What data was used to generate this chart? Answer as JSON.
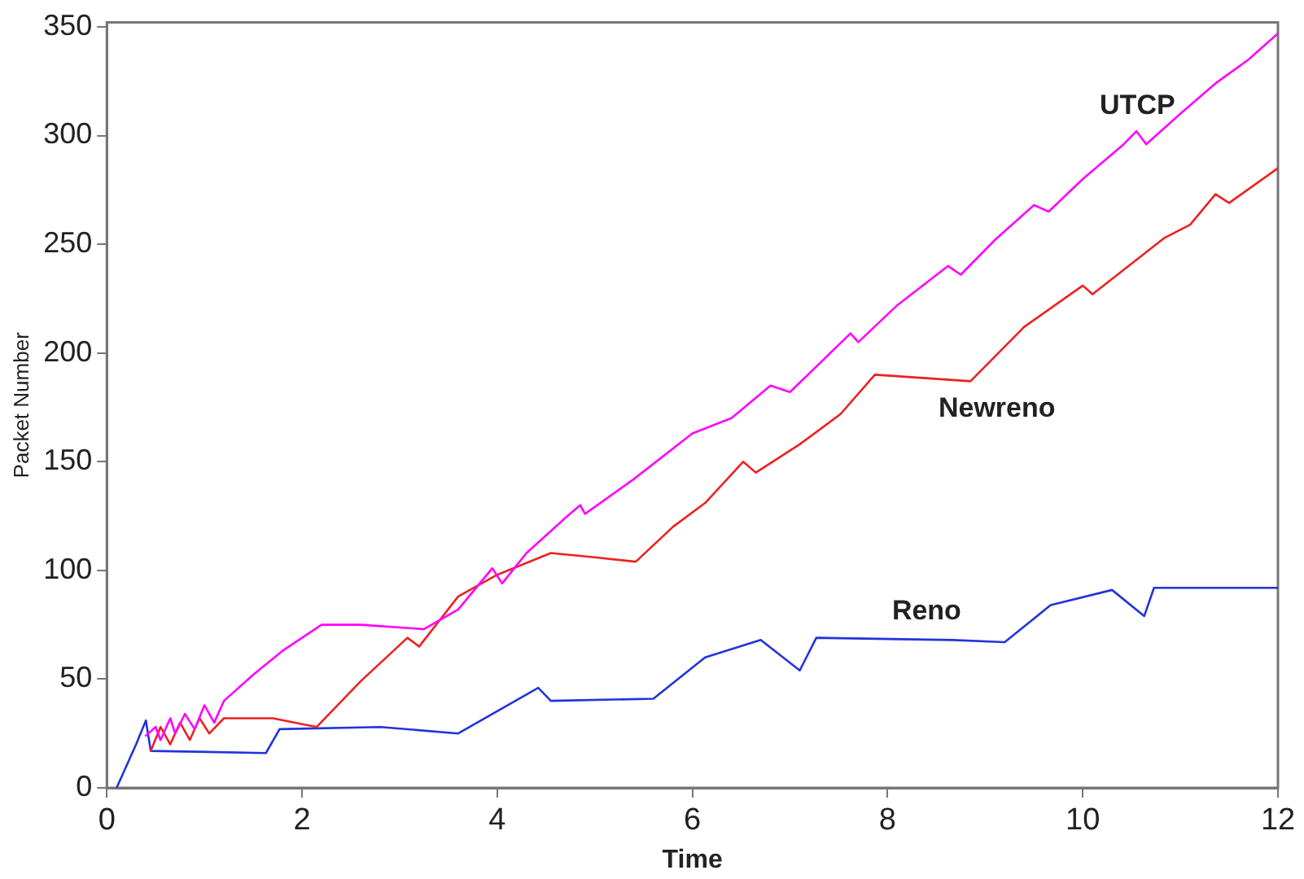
{
  "chart_data": {
    "type": "line",
    "xlabel": "Time",
    "ylabel": "Packet Number",
    "xlim": [
      0,
      12
    ],
    "ylim": [
      0,
      352
    ],
    "xticks": [
      0,
      2,
      4,
      6,
      8,
      10,
      12
    ],
    "yticks": [
      0,
      50,
      100,
      150,
      200,
      250,
      300,
      350
    ],
    "grid": false,
    "legend": false,
    "marker": "none",
    "line_style": "solid",
    "series": [
      {
        "name": "UTCP",
        "color": "#ff00ff",
        "x": [
          0.4,
          0.5,
          0.55,
          0.65,
          0.7,
          0.8,
          0.9,
          1.0,
          1.1,
          1.2,
          1.5,
          1.8,
          2.2,
          2.6,
          3.25,
          3.6,
          3.95,
          4.05,
          4.3,
          4.72,
          4.85,
          4.9,
          5.4,
          6.0,
          6.4,
          6.8,
          7.0,
          7.62,
          7.7,
          8.1,
          8.62,
          8.75,
          9.1,
          9.5,
          9.65,
          10.0,
          10.42,
          10.55,
          10.65,
          11.0,
          11.36,
          11.7,
          12.0
        ],
        "values": [
          24,
          28,
          22,
          32,
          25,
          34,
          27,
          38,
          30,
          40,
          52,
          63,
          75,
          75,
          73,
          82,
          101,
          94,
          108,
          125,
          130,
          126,
          142,
          163,
          170,
          185,
          182,
          209,
          205,
          222,
          240,
          236,
          252,
          268,
          265,
          280,
          296,
          302,
          296,
          310,
          324,
          335,
          347
        ]
      },
      {
        "name": "Newreno",
        "color": "#ee2020",
        "x": [
          0.45,
          0.55,
          0.65,
          0.75,
          0.85,
          0.95,
          1.05,
          1.2,
          1.7,
          2.15,
          2.6,
          3.08,
          3.2,
          3.6,
          4.0,
          4.55,
          5.0,
          5.42,
          5.8,
          6.13,
          6.52,
          6.65,
          7.1,
          7.52,
          7.87,
          8.85,
          9.4,
          10.0,
          10.1,
          10.84,
          11.1,
          11.36,
          11.5,
          12.0
        ],
        "values": [
          17,
          28,
          20,
          30,
          22,
          32,
          25,
          32,
          32,
          28,
          49,
          69,
          65,
          88,
          98,
          108,
          106,
          104,
          120,
          131,
          150,
          145,
          158,
          172,
          190,
          187,
          212,
          231,
          227,
          253,
          259,
          273,
          269,
          285
        ]
      },
      {
        "name": "Reno",
        "color": "#2233dd",
        "x": [
          0.1,
          0.3,
          0.4,
          0.45,
          1.63,
          1.77,
          2.8,
          3.6,
          4.42,
          4.55,
          5.6,
          6.13,
          6.7,
          7.1,
          7.27,
          8.67,
          9.2,
          9.67,
          10.3,
          10.63,
          10.73,
          12.0
        ],
        "values": [
          0,
          20,
          31,
          17,
          16,
          27,
          28,
          25,
          46,
          40,
          41,
          60,
          68,
          54,
          69,
          68,
          67,
          84,
          91,
          79,
          92,
          92
        ]
      }
    ]
  }
}
